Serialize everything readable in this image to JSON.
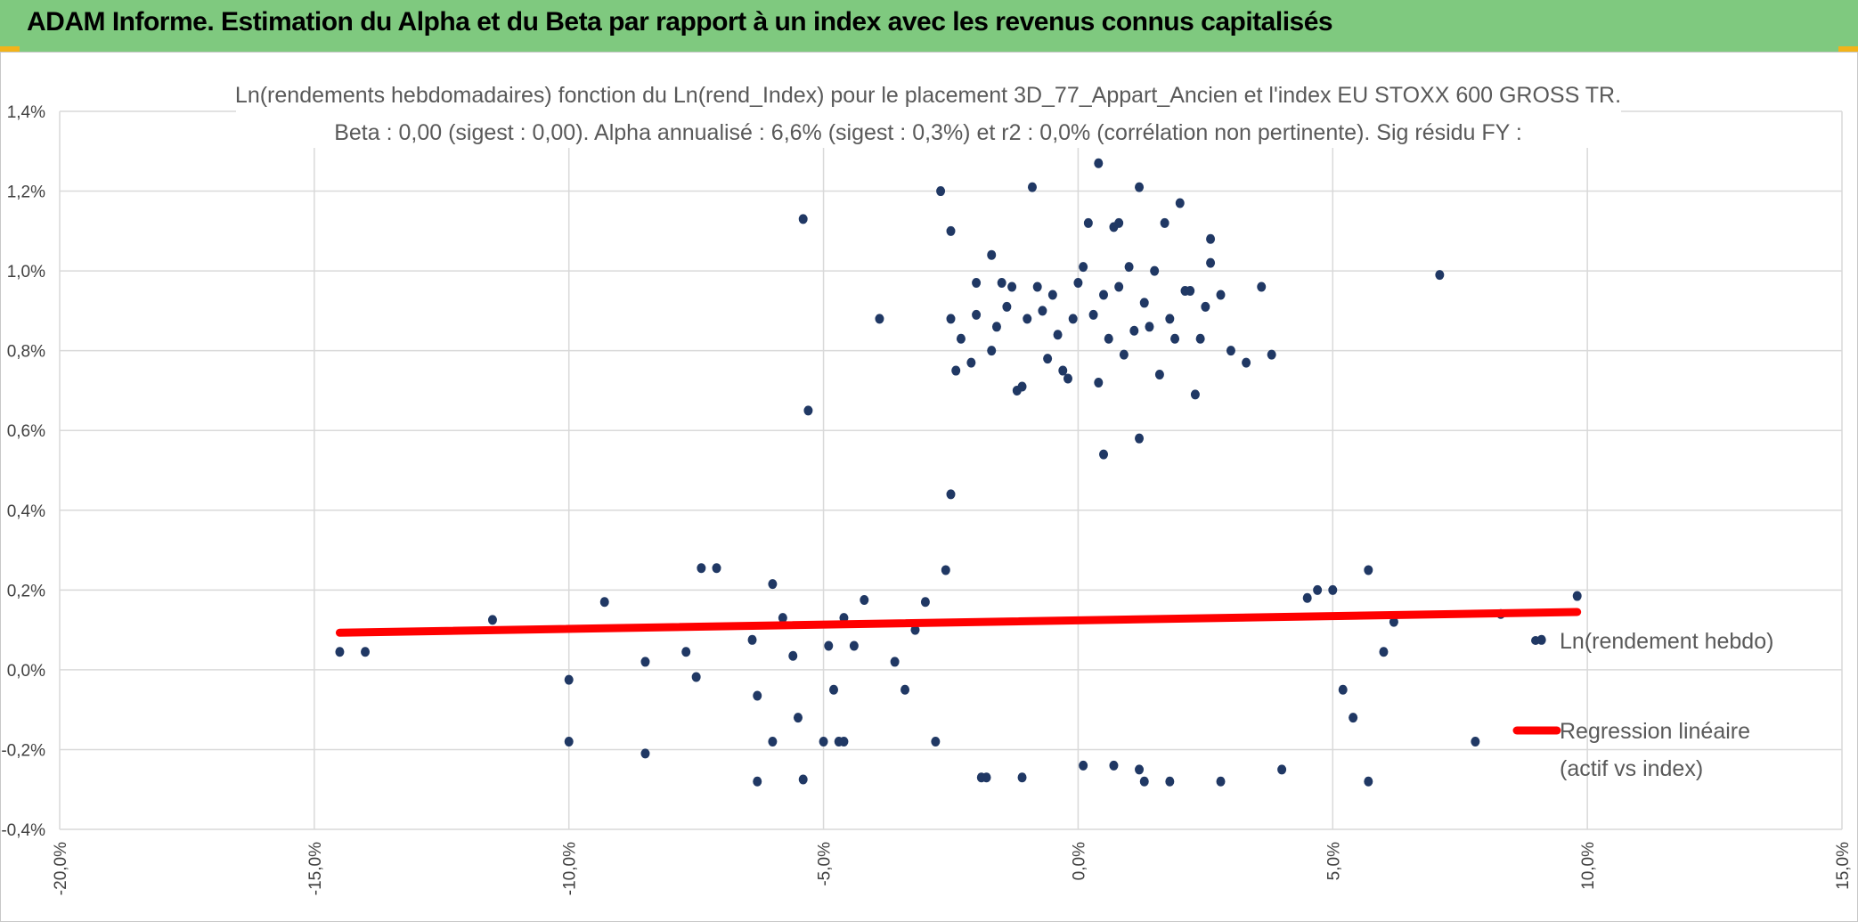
{
  "header": {
    "title": "ADAM Informe. Estimation du Alpha et du Beta par rapport à un index avec les revenus connus capitalisés"
  },
  "colors": {
    "banner": "#7fc97f",
    "points": "#203864",
    "regression": "#ff0000",
    "grid": "#d9d9d9"
  },
  "chart_data": {
    "type": "scatter",
    "title_line1": "Ln(rendements hebdomadaires) fonction du Ln(rend_Index) pour le placement 3D_77_Appart_Ancien et l'index EU STOXX 600 GROSS TR.",
    "title_line2": "Beta : 0,00 (sigest : 0,00). Alpha annualisé : 6,6% (sigest : 0,3%) et r2 : 0,0% (corrélation non pertinente). Sig résidu FY :",
    "xlim": [
      -0.2,
      0.15
    ],
    "ylim": [
      -0.004,
      0.014
    ],
    "x_ticks": [
      {
        "value": -0.2,
        "label": "-20,0%"
      },
      {
        "value": -0.15,
        "label": "-15,0%"
      },
      {
        "value": -0.1,
        "label": "-10,0%"
      },
      {
        "value": -0.05,
        "label": "-5,0%"
      },
      {
        "value": 0.0,
        "label": "0,0%"
      },
      {
        "value": 0.05,
        "label": "5,0%"
      },
      {
        "value": 0.1,
        "label": "10,0%"
      },
      {
        "value": 0.15,
        "label": "15,0%"
      }
    ],
    "y_ticks": [
      {
        "value": -0.004,
        "label": "-0,4%"
      },
      {
        "value": -0.002,
        "label": "-0,2%"
      },
      {
        "value": 0.0,
        "label": "0,0%"
      },
      {
        "value": 0.002,
        "label": "0,2%"
      },
      {
        "value": 0.004,
        "label": "0,4%"
      },
      {
        "value": 0.006,
        "label": "0,6%"
      },
      {
        "value": 0.008,
        "label": "0,8%"
      },
      {
        "value": 0.01,
        "label": "1,0%"
      },
      {
        "value": 0.012,
        "label": "1,2%"
      },
      {
        "value": 0.014,
        "label": "1,4%"
      }
    ],
    "grid": true,
    "legend_position": "right",
    "series": [
      {
        "name": "Ln(rendement hebdo)",
        "kind": "scatter",
        "points": [
          [
            -0.145,
            0.00045
          ],
          [
            -0.14,
            0.00045
          ],
          [
            -0.115,
            0.00125
          ],
          [
            -0.1,
            -0.00025
          ],
          [
            -0.1,
            -0.0018
          ],
          [
            -0.093,
            0.0017
          ],
          [
            -0.085,
            0.0002
          ],
          [
            -0.085,
            -0.0021
          ],
          [
            -0.077,
            0.00045
          ],
          [
            -0.075,
            -0.00018
          ],
          [
            -0.074,
            0.00255
          ],
          [
            -0.071,
            0.00255
          ],
          [
            -0.064,
            0.00075
          ],
          [
            -0.063,
            -0.00065
          ],
          [
            -0.063,
            -0.0028
          ],
          [
            -0.06,
            -0.0018
          ],
          [
            -0.06,
            0.00215
          ],
          [
            -0.058,
            0.0013
          ],
          [
            -0.056,
            0.00035
          ],
          [
            -0.055,
            -0.0012
          ],
          [
            -0.054,
            -0.00275
          ],
          [
            -0.054,
            0.0113
          ],
          [
            -0.053,
            0.0065
          ],
          [
            -0.05,
            -0.0018
          ],
          [
            -0.049,
            0.0006
          ],
          [
            -0.048,
            -0.0005
          ],
          [
            -0.047,
            -0.0018
          ],
          [
            -0.046,
            -0.0018
          ],
          [
            -0.046,
            0.0013
          ],
          [
            -0.044,
            0.0006
          ],
          [
            -0.042,
            0.00175
          ],
          [
            -0.039,
            0.0088
          ],
          [
            -0.036,
            0.0002
          ],
          [
            -0.034,
            -0.0005
          ],
          [
            -0.032,
            0.001
          ],
          [
            -0.03,
            0.0017
          ],
          [
            -0.028,
            -0.0018
          ],
          [
            -0.027,
            0.012
          ],
          [
            -0.026,
            0.0025
          ],
          [
            -0.025,
            0.011
          ],
          [
            -0.025,
            0.0044
          ],
          [
            -0.025,
            0.0088
          ],
          [
            -0.024,
            0.0075
          ],
          [
            -0.023,
            0.0083
          ],
          [
            -0.021,
            0.0077
          ],
          [
            -0.02,
            0.0097
          ],
          [
            -0.02,
            0.0089
          ],
          [
            -0.019,
            -0.0027
          ],
          [
            -0.018,
            -0.0027
          ],
          [
            -0.017,
            0.008
          ],
          [
            -0.017,
            0.0104
          ],
          [
            -0.016,
            0.0086
          ],
          [
            -0.015,
            0.0097
          ],
          [
            -0.014,
            0.0091
          ],
          [
            -0.013,
            0.0096
          ],
          [
            -0.012,
            0.007
          ],
          [
            -0.011,
            -0.0027
          ],
          [
            -0.011,
            0.0071
          ],
          [
            -0.01,
            0.0088
          ],
          [
            -0.009,
            0.0121
          ],
          [
            -0.008,
            0.0096
          ],
          [
            -0.007,
            0.009
          ],
          [
            -0.006,
            0.0078
          ],
          [
            -0.005,
            0.0094
          ],
          [
            -0.004,
            0.0084
          ],
          [
            -0.003,
            0.0075
          ],
          [
            -0.002,
            0.0073
          ],
          [
            -0.001,
            0.0088
          ],
          [
            0.0,
            0.0097
          ],
          [
            0.001,
            0.0101
          ],
          [
            0.002,
            0.0112
          ],
          [
            0.003,
            0.0089
          ],
          [
            0.004,
            0.0072
          ],
          [
            0.004,
            0.0127
          ],
          [
            0.005,
            0.0094
          ],
          [
            0.006,
            0.0083
          ],
          [
            0.007,
            0.0111
          ],
          [
            0.008,
            0.0096
          ],
          [
            0.008,
            0.0112
          ],
          [
            0.009,
            0.0079
          ],
          [
            0.01,
            0.0101
          ],
          [
            0.011,
            0.0085
          ],
          [
            0.012,
            0.0121
          ],
          [
            0.013,
            0.0092
          ],
          [
            0.014,
            0.0086
          ],
          [
            0.015,
            0.01
          ],
          [
            0.016,
            0.0074
          ],
          [
            0.017,
            0.0112
          ],
          [
            0.018,
            0.0088
          ],
          [
            0.019,
            0.0083
          ],
          [
            0.02,
            0.0117
          ],
          [
            0.021,
            0.0095
          ],
          [
            0.022,
            0.0095
          ],
          [
            0.023,
            0.0069
          ],
          [
            0.024,
            0.0083
          ],
          [
            0.025,
            0.0091
          ],
          [
            0.026,
            0.0108
          ],
          [
            0.026,
            0.0102
          ],
          [
            0.028,
            0.0094
          ],
          [
            0.03,
            0.008
          ],
          [
            0.033,
            0.0077
          ],
          [
            0.036,
            0.0096
          ],
          [
            0.038,
            0.0079
          ],
          [
            0.045,
            0.0018
          ],
          [
            0.047,
            0.002
          ],
          [
            0.05,
            0.002
          ],
          [
            0.052,
            -0.0005
          ],
          [
            0.054,
            -0.0012
          ],
          [
            0.057,
            0.0025
          ],
          [
            0.057,
            -0.0028
          ],
          [
            0.06,
            0.00045
          ],
          [
            0.062,
            0.0012
          ],
          [
            0.071,
            0.0099
          ],
          [
            0.078,
            -0.0018
          ],
          [
            0.083,
            0.0014
          ],
          [
            0.091,
            0.00075
          ],
          [
            0.098,
            0.00185
          ],
          [
            0.005,
            0.0054
          ],
          [
            0.012,
            0.0058
          ],
          [
            0.001,
            -0.0024
          ],
          [
            0.007,
            -0.0024
          ],
          [
            0.012,
            -0.0025
          ],
          [
            0.013,
            -0.0028
          ],
          [
            0.018,
            -0.0028
          ],
          [
            0.028,
            -0.0028
          ],
          [
            0.04,
            -0.0025
          ]
        ]
      },
      {
        "name": "Regression linéaire (actif vs index)",
        "kind": "line",
        "points": [
          [
            -0.145,
            0.00093
          ],
          [
            0.098,
            0.00145
          ]
        ]
      }
    ],
    "legend": [
      {
        "label": "Ln(rendement hebdo)"
      },
      {
        "label_line1": "Regression linéaire",
        "label_line2": "(actif vs index)"
      }
    ]
  }
}
